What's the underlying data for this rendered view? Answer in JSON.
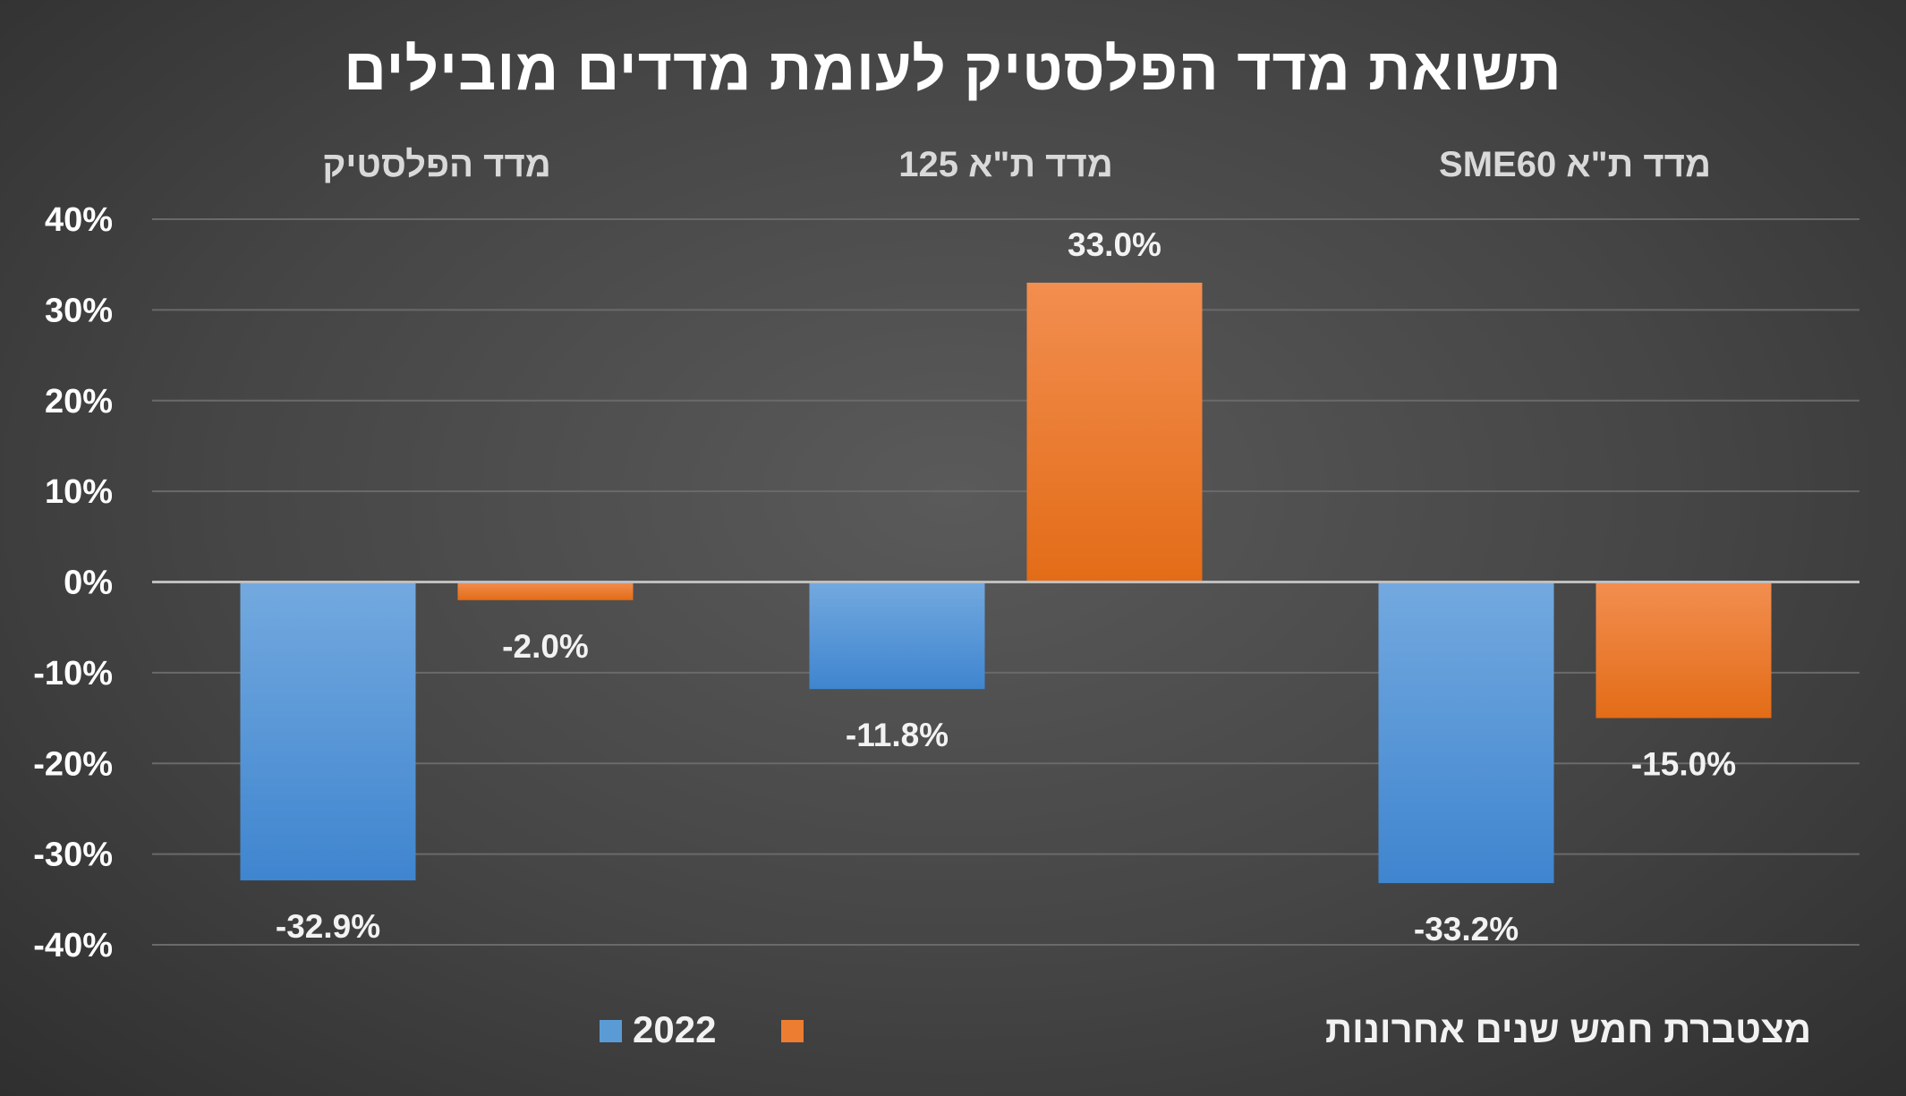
{
  "chart_data": {
    "type": "bar",
    "title": "תשואת מדד הפלסטיק לעומת מדדים מובילים",
    "categories": [
      "מדד ת\"א SME60",
      "מדד ת\"א 125",
      "מדד הפלסטיק"
    ],
    "category_order": "right-to-left",
    "category_axis_position": "top",
    "series": [
      {
        "name": "2022",
        "values": [
          -33.2,
          -11.8,
          -32.9
        ],
        "color": "#5b9bd5"
      },
      {
        "name": "מצטברת חמש שנים אחרונות",
        "values": [
          -15.0,
          33.0,
          -2.0
        ],
        "color": "#ed7d31"
      }
    ],
    "data_labels": [
      [
        "-33.2%",
        "-11.8%",
        "-32.9%"
      ],
      [
        "-15.0%",
        "33.0%",
        "-2.0%"
      ]
    ],
    "y_ticks": [
      "40%",
      "30%",
      "20%",
      "10%",
      "0%",
      "-10%",
      "-20%",
      "-30%",
      "-40%"
    ],
    "ylim": [
      -40,
      40
    ],
    "y_unit": "%",
    "grid": true,
    "legend_position": "bottom",
    "colors": {
      "background": "#464646",
      "gridline": "#6a6a6a",
      "zero_line": "#bfbfbf",
      "text": "#ffffff"
    }
  }
}
